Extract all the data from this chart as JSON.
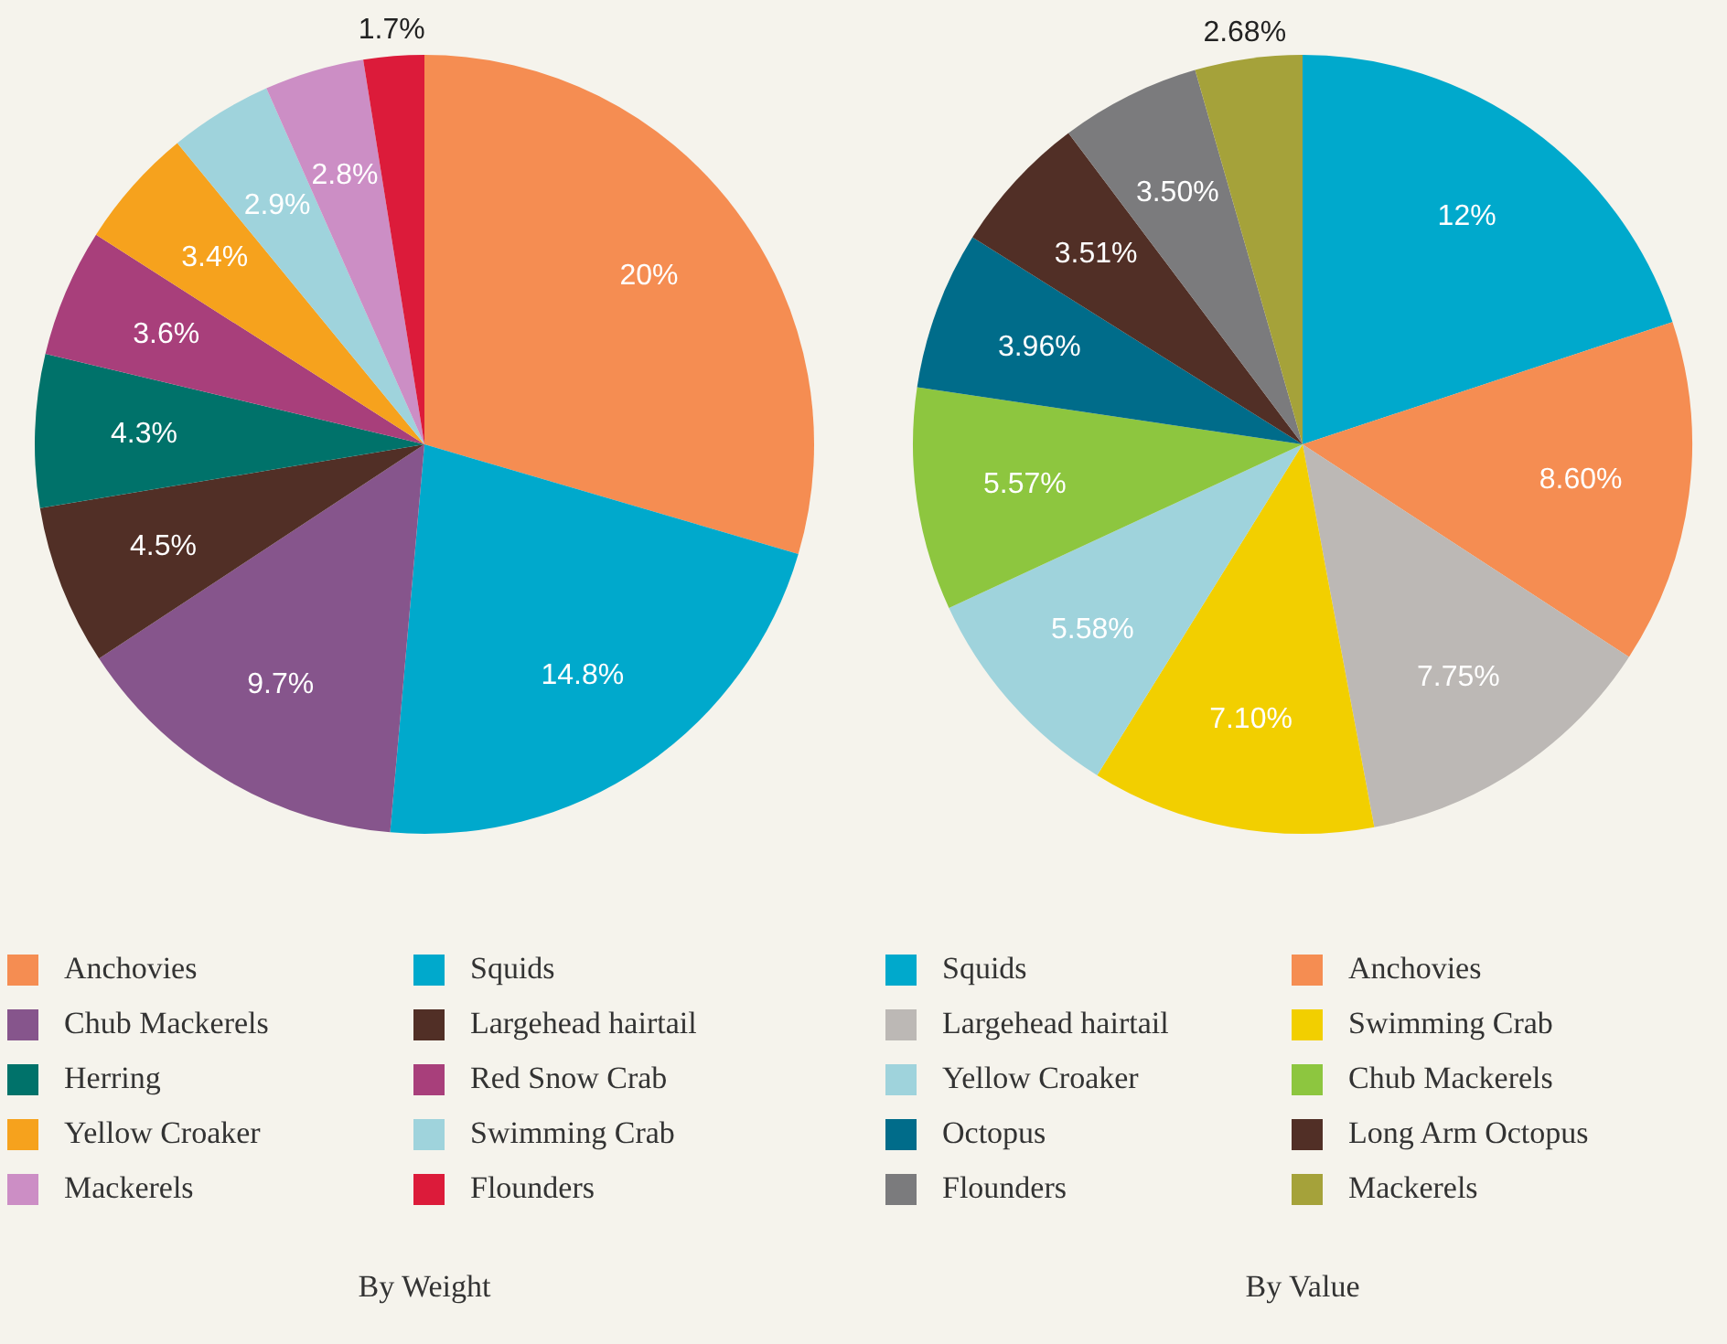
{
  "chart_data": [
    {
      "type": "pie",
      "title": "By Weight",
      "legend": "bottom",
      "categories": [
        "Anchovies",
        "Squids",
        "Chub Mackerels",
        "Largehead hairtail",
        "Herring",
        "Red Snow Crab",
        "Yellow Croaker",
        "Swimming Crab",
        "Mackerels",
        "Flounders"
      ],
      "values": [
        20,
        14.8,
        9.7,
        4.5,
        4.3,
        3.6,
        3.4,
        2.9,
        2.8,
        1.7
      ],
      "value_labels": [
        "20%",
        "14.8%",
        "9.7%",
        "4.5%",
        "4.3%",
        "3.6%",
        "3.4%",
        "2.9%",
        "2.8%",
        "1.7%"
      ],
      "colors": [
        "#f58d52",
        "#00a9cc",
        "#86558c",
        "#512f26",
        "#00726a",
        "#a83f7b",
        "#f6a21d",
        "#9fd3dc",
        "#cc8ec5",
        "#dc1b3a"
      ]
    },
    {
      "type": "pie",
      "title": "By Value",
      "legend": "bottom",
      "categories": [
        "Squids",
        "Anchovies",
        "Largehead hairtail",
        "Swimming Crab",
        "Yellow Croaker",
        "Chub Mackerels",
        "Octopus",
        "Long Arm Octopus",
        "Flounders",
        "Mackerels"
      ],
      "values": [
        12,
        8.6,
        7.75,
        7.1,
        5.58,
        5.57,
        3.96,
        3.51,
        3.5,
        2.68
      ],
      "value_labels": [
        "12%",
        "8.60%",
        "7.75%",
        "7.10%",
        "5.58%",
        "5.57%",
        "3.96%",
        "3.51%",
        "3.50%",
        "2.68%"
      ],
      "colors": [
        "#00a9cc",
        "#f58d52",
        "#bcb8b5",
        "#f2cf00",
        "#9fd3dc",
        "#8dc63f",
        "#006c8a",
        "#512f26",
        "#7b7b7d",
        "#a5a23a"
      ]
    }
  ]
}
